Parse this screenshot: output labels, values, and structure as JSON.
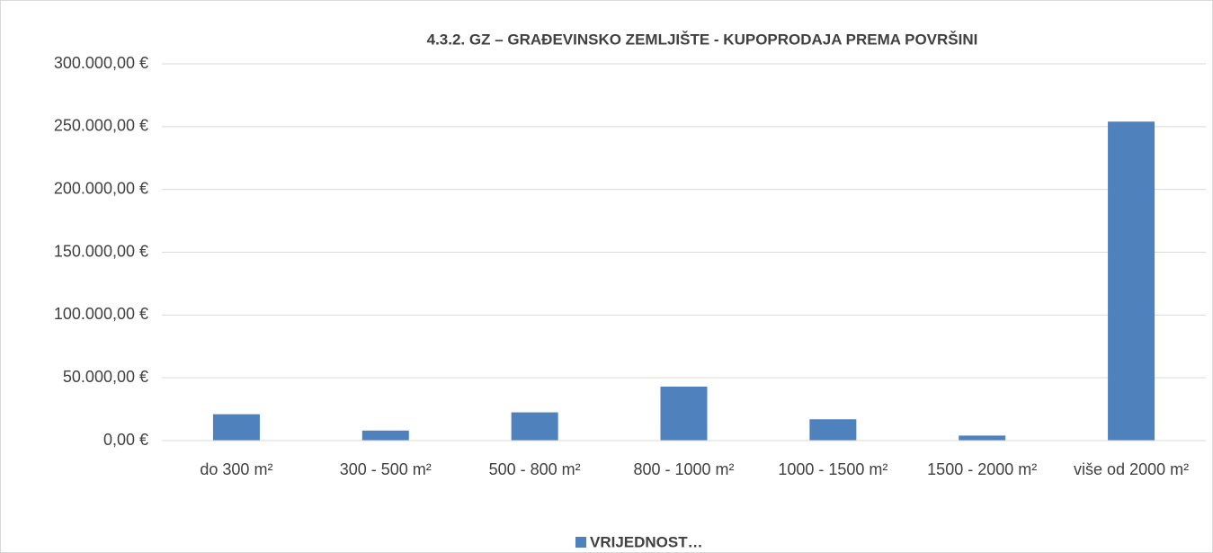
{
  "chart_data": {
    "type": "bar",
    "title": "4.3.2. GZ – GRAĐEVINSKO ZEMLJIŠTE - KUPOPRODAJA PREMA POVRŠINI",
    "categories": [
      "do 300 m²",
      "300 - 500 m²",
      "500 - 800 m²",
      "800 - 1000 m²",
      "1000 - 1500 m²",
      "1500 - 2000 m²",
      "više od 2000 m²"
    ],
    "series": [
      {
        "name": "VRIJEDNOST…",
        "color": "#4f81bd",
        "values": [
          21000,
          8000,
          22500,
          43000,
          17000,
          4000,
          254000
        ]
      }
    ],
    "ylim": [
      0,
      300000
    ],
    "yticks": [
      {
        "value": 0,
        "label": "0,00 €"
      },
      {
        "value": 50000,
        "label": "50.000,00 €"
      },
      {
        "value": 100000,
        "label": "100.000,00 €"
      },
      {
        "value": 150000,
        "label": "150.000,00 €"
      },
      {
        "value": 200000,
        "label": "200.000,00 €"
      },
      {
        "value": 250000,
        "label": "250.000,00 €"
      },
      {
        "value": 300000,
        "label": "300.000,00 €"
      }
    ],
    "grid": true,
    "legend": "bottom"
  }
}
